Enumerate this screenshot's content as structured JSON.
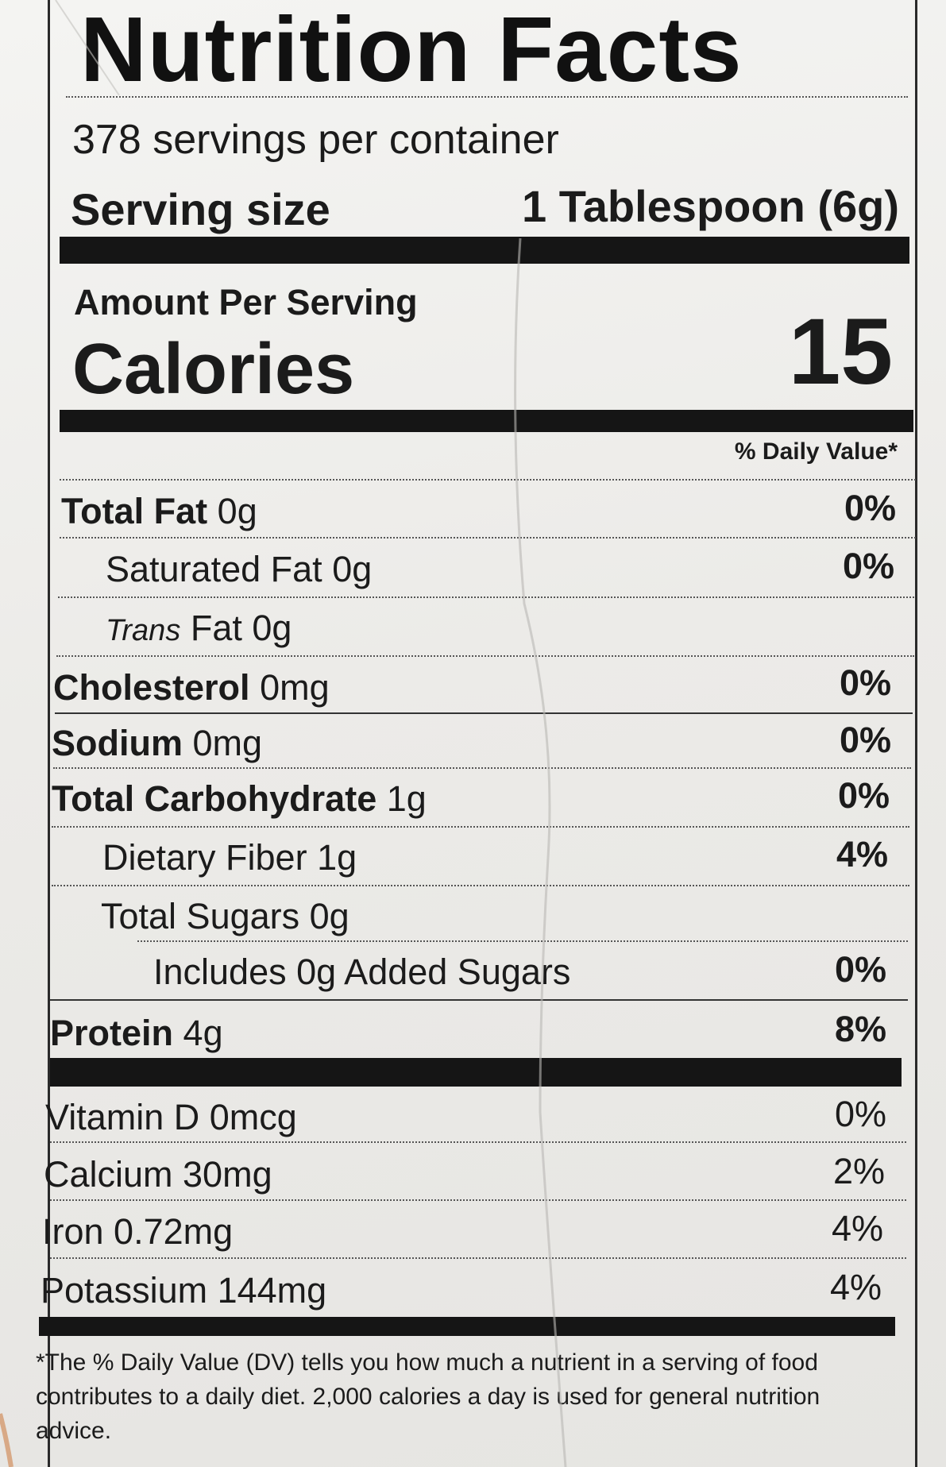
{
  "label": {
    "title": "Nutrition Facts",
    "servings_per_container": "378 servings per container",
    "serving_size_label": "Serving size",
    "serving_size_value": "1 Tablespoon (6g)",
    "amount_per_serving": "Amount Per Serving",
    "calories_label": "Calories",
    "calories_value": "15",
    "daily_value_header": "% Daily Value*",
    "nutrients": [
      {
        "name": "Total Fat",
        "amount": "0g",
        "dv": "0%"
      },
      {
        "name": "Saturated Fat",
        "amount": "0g",
        "dv": "0%"
      },
      {
        "name": "Trans",
        "name_rest": "Fat",
        "amount": "0g",
        "dv": ""
      },
      {
        "name": "Cholesterol",
        "amount": "0mg",
        "dv": "0%"
      },
      {
        "name": "Sodium",
        "amount": "0mg",
        "dv": "0%"
      },
      {
        "name": "Total Carbohydrate",
        "amount": "1g",
        "dv": "0%"
      },
      {
        "name": "Dietary Fiber",
        "amount": "1g",
        "dv": "4%"
      },
      {
        "name": "Total Sugars",
        "amount": "0g",
        "dv": ""
      },
      {
        "name": "Includes 0g Added Sugars",
        "amount": "",
        "dv": "0%"
      },
      {
        "name": "Protein",
        "amount": "4g",
        "dv": "8%"
      }
    ],
    "vitamins": [
      {
        "name": "Vitamin D 0mcg",
        "dv": "0%"
      },
      {
        "name": "Calcium 30mg",
        "dv": "2%"
      },
      {
        "name": "Iron 0.72mg",
        "dv": "4%"
      },
      {
        "name": "Potassium 144mg",
        "dv": "4%"
      }
    ],
    "footnote": "*The % Daily Value (DV) tells you how much a nutrient in a serving of food contributes to a daily diet. 2,000 calories a day is used for general nutrition advice."
  },
  "colors": {
    "ink": "#151515",
    "paper": "#f0efec"
  }
}
